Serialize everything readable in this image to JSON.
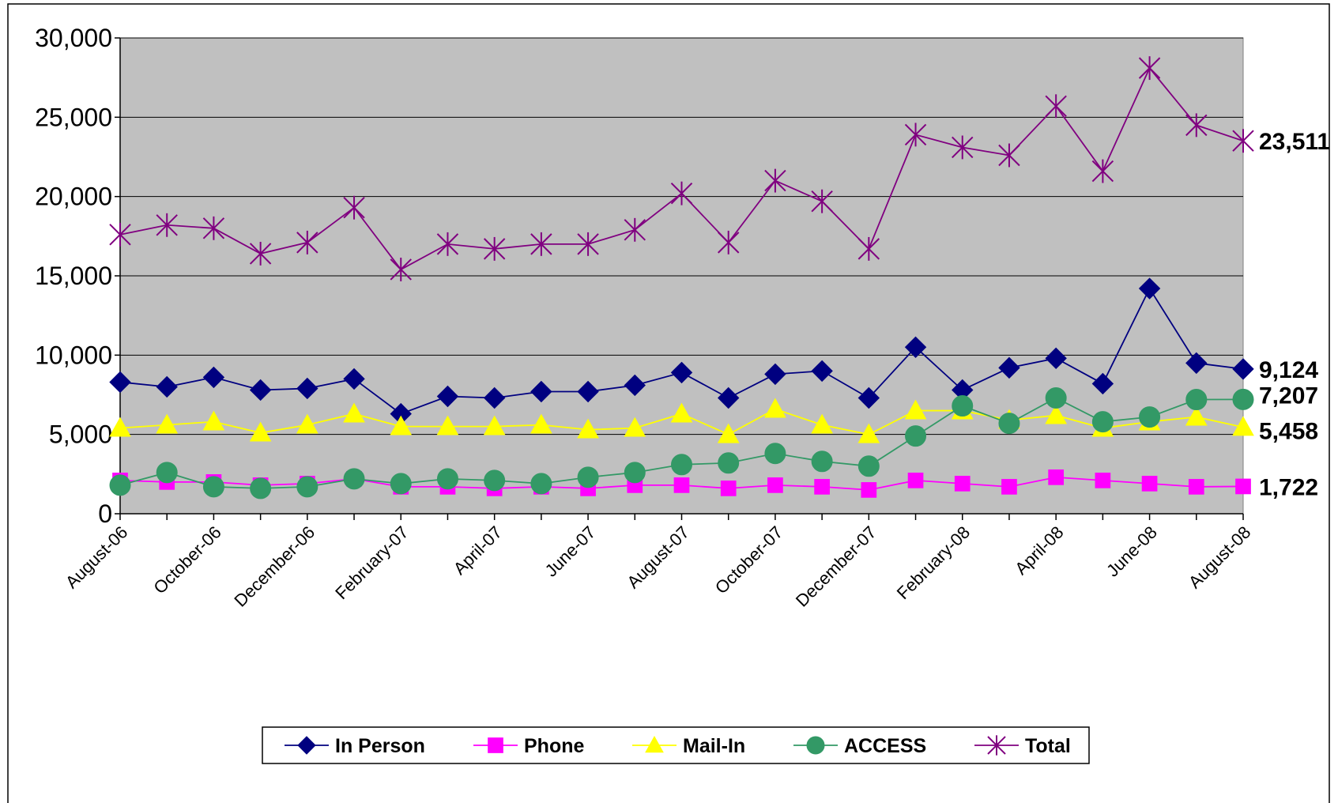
{
  "chart_data": {
    "type": "line",
    "title": "",
    "xlabel": "",
    "ylabel": "",
    "ylim": [
      0,
      30000
    ],
    "y_ticks": [
      0,
      5000,
      10000,
      15000,
      20000,
      25000,
      30000
    ],
    "y_tick_labels": [
      "0",
      "5,000",
      "10,000",
      "15,000",
      "20,000",
      "25,000",
      "30,000"
    ],
    "grid": true,
    "plot_background": "#C0C0C0",
    "legend_position": "bottom",
    "x": [
      "August-06",
      "September-06",
      "October-06",
      "November-06",
      "December-06",
      "January-07",
      "February-07",
      "March-07",
      "April-07",
      "May-07",
      "June-07",
      "July-07",
      "August-07",
      "September-07",
      "October-07",
      "November-07",
      "December-07",
      "January-08",
      "February-08",
      "March-08",
      "April-08",
      "May-08",
      "June-08",
      "July-08",
      "August-08"
    ],
    "x_tick_labels": [
      "August-06",
      "October-06",
      "December-06",
      "February-07",
      "April-07",
      "June-07",
      "August-07",
      "October-07",
      "December-07",
      "February-08",
      "April-08",
      "June-08",
      "August-08"
    ],
    "series": [
      {
        "name": "In Person",
        "color": "#000080",
        "marker": "diamond",
        "values": [
          8300,
          8000,
          8600,
          7800,
          7900,
          8500,
          6300,
          7400,
          7300,
          7700,
          7700,
          8100,
          8900,
          7300,
          8800,
          9000,
          7300,
          10500,
          7800,
          9200,
          9800,
          8200,
          14200,
          9500,
          9124
        ]
      },
      {
        "name": "Phone",
        "color": "#FF00FF",
        "marker": "square",
        "values": [
          2100,
          2000,
          2000,
          1800,
          1900,
          2200,
          1700,
          1700,
          1600,
          1700,
          1600,
          1800,
          1800,
          1600,
          1800,
          1700,
          1500,
          2100,
          1900,
          1700,
          2300,
          2100,
          1900,
          1700,
          1722
        ]
      },
      {
        "name": "Mail-In",
        "color": "#FFFF00",
        "marker": "triangle",
        "values": [
          5400,
          5600,
          5800,
          5100,
          5600,
          6300,
          5500,
          5500,
          5500,
          5600,
          5300,
          5400,
          6300,
          5000,
          6600,
          5600,
          5000,
          6500,
          6500,
          5900,
          6200,
          5400,
          5800,
          6100,
          5458
        ]
      },
      {
        "name": "ACCESS",
        "color": "#339966",
        "marker": "circle",
        "values": [
          1800,
          2600,
          1700,
          1600,
          1700,
          2200,
          1900,
          2200,
          2100,
          1900,
          2300,
          2600,
          3100,
          3200,
          3800,
          3300,
          3000,
          4900,
          6800,
          5700,
          7300,
          5800,
          6100,
          7200,
          7207
        ]
      },
      {
        "name": "Total",
        "color": "#800080",
        "marker": "star",
        "values": [
          17600,
          18200,
          18000,
          16400,
          17100,
          19300,
          15400,
          17000,
          16700,
          17000,
          17000,
          17900,
          20200,
          17100,
          21000,
          19700,
          16700,
          23900,
          23100,
          22600,
          25700,
          21600,
          28100,
          24500,
          23511
        ]
      }
    ],
    "end_labels": [
      {
        "series": "Total",
        "text": "23,511"
      },
      {
        "series": "In Person",
        "text": "9,124"
      },
      {
        "series": "ACCESS",
        "text": "7,207"
      },
      {
        "series": "Mail-In",
        "text": "5,458"
      },
      {
        "series": "Phone",
        "text": "1,722"
      }
    ]
  }
}
